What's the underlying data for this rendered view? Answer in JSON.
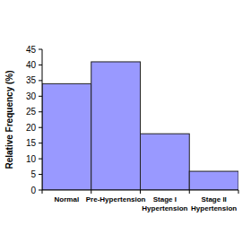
{
  "chart_data": {
    "type": "bar",
    "y_label": "Relative Frequency (%)",
    "categories": [
      "Normal",
      "Pre-Hypertension",
      "Stage I Hypertension",
      "Stage II Hypertension"
    ],
    "values": [
      34,
      41,
      18,
      6
    ],
    "color": "#9999ff",
    "ylim": [
      0,
      45
    ],
    "yticks": [
      0,
      5,
      10,
      15,
      20,
      25,
      30,
      35,
      40,
      45
    ],
    "grid": false
  }
}
